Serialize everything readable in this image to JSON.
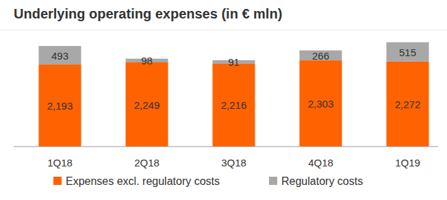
{
  "chart_data": {
    "type": "bar",
    "title": "Underlying operating expenses (in € mln)",
    "categories": [
      "1Q18",
      "2Q18",
      "3Q18",
      "4Q18",
      "1Q19"
    ],
    "series": [
      {
        "name": "Expenses excl. regulatory costs",
        "color": "#ff6200",
        "values": [
          2193,
          2249,
          2216,
          2303,
          2272
        ],
        "value_labels": [
          "2,193",
          "2,249",
          "2,216",
          "2,303",
          "2,272"
        ]
      },
      {
        "name": "Regulatory costs",
        "color": "#a8a8a8",
        "values": [
          493,
          98,
          91,
          266,
          515
        ]
      }
    ],
    "stacked": true,
    "data_labels": true,
    "tick_labels": "x",
    "ylim": [
      0,
      3000
    ],
    "legend": "bottom"
  }
}
